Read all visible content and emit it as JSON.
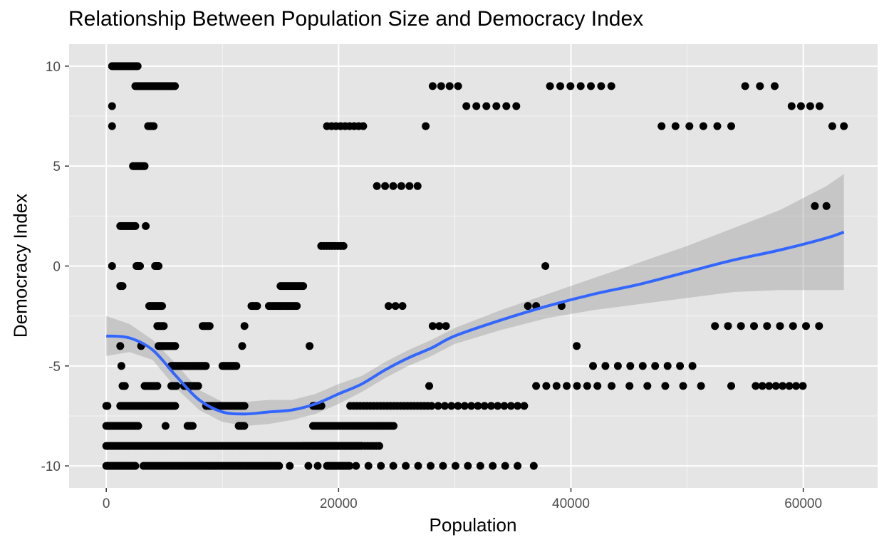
{
  "chart_data": {
    "type": "scatter",
    "title": "Relationship Between Population Size and Democracy Index",
    "xlabel": "Population",
    "ylabel": "Democracy Index",
    "xlim": [
      -3200,
      66400
    ],
    "ylim": [
      -11.1,
      11.1
    ],
    "x_ticks": [
      0,
      20000,
      40000,
      60000
    ],
    "x_tick_labels": [
      "0",
      "20000",
      "40000",
      "60000"
    ],
    "y_ticks": [
      -10,
      -5,
      0,
      5,
      10
    ],
    "y_tick_labels": [
      "-10",
      "-5",
      "0",
      "5",
      "10"
    ],
    "grid": true,
    "colors": {
      "panel": "#e5e5e5",
      "grid_major": "#ffffff",
      "points": "#000000",
      "smooth_line": "#3366ff",
      "ribbon": "#999999",
      "tick_text": "#4d4d4d"
    },
    "point_groups": [
      {
        "y": 10,
        "x_from": 500,
        "x_to": 2700,
        "step": 100
      },
      {
        "y": 9,
        "x_from": 2500,
        "x_to": 6000,
        "step": 110
      },
      {
        "y": 8,
        "x_from": 500,
        "x_to": 500,
        "step": 100
      },
      {
        "y": 7,
        "x_from": 500,
        "x_to": 500,
        "step": 100
      },
      {
        "y": 7,
        "x_from": 3600,
        "x_to": 4100,
        "step": 120
      },
      {
        "y": 5,
        "x_from": 2300,
        "x_to": 3300,
        "step": 100
      },
      {
        "y": 2,
        "x_from": 1200,
        "x_to": 2500,
        "step": 100
      },
      {
        "y": 2,
        "x_from": 3400,
        "x_to": 3400,
        "step": 100
      },
      {
        "y": 0,
        "x_from": 500,
        "x_to": 500,
        "step": 100
      },
      {
        "y": 0,
        "x_from": 2600,
        "x_to": 2900,
        "step": 100
      },
      {
        "y": 0,
        "x_from": 4200,
        "x_to": 4500,
        "step": 100
      },
      {
        "y": -1,
        "x_from": 1200,
        "x_to": 1400,
        "step": 100
      },
      {
        "y": -2,
        "x_from": 3700,
        "x_to": 4900,
        "step": 110
      },
      {
        "y": -3,
        "x_from": 4400,
        "x_to": 5000,
        "step": 110
      },
      {
        "y": -4,
        "x_from": 1200,
        "x_to": 1200,
        "step": 100
      },
      {
        "y": -4,
        "x_from": 3000,
        "x_to": 3000,
        "step": 100
      },
      {
        "y": -4,
        "x_from": 4500,
        "x_to": 6000,
        "step": 110
      },
      {
        "y": -5,
        "x_from": 1300,
        "x_to": 1300,
        "step": 100
      },
      {
        "y": -5,
        "x_from": 5600,
        "x_to": 8600,
        "step": 110
      },
      {
        "y": -6,
        "x_from": 1400,
        "x_to": 1600,
        "step": 100
      },
      {
        "y": -6,
        "x_from": 3300,
        "x_to": 4400,
        "step": 110
      },
      {
        "y": -6,
        "x_from": 5600,
        "x_to": 6100,
        "step": 110
      },
      {
        "y": -6,
        "x_from": 6700,
        "x_to": 8000,
        "step": 110
      },
      {
        "y": -7,
        "x_from": 0,
        "x_to": 100,
        "step": 100
      },
      {
        "y": -7,
        "x_from": 1200,
        "x_to": 6000,
        "step": 110
      },
      {
        "y": -8,
        "x_from": 0,
        "x_to": 2800,
        "step": 110
      },
      {
        "y": -8,
        "x_from": 5100,
        "x_to": 5100,
        "step": 100
      },
      {
        "y": -8,
        "x_from": 7000,
        "x_to": 7500,
        "step": 110
      },
      {
        "y": -9,
        "x_from": 0,
        "x_to": 22000,
        "step": 160
      },
      {
        "y": -10,
        "x_from": 0,
        "x_to": 2500,
        "step": 100
      },
      {
        "y": -10,
        "x_from": 3200,
        "x_to": 15000,
        "step": 160
      },
      {
        "y": -3,
        "x_from": 8300,
        "x_to": 8900,
        "step": 120
      },
      {
        "y": -5,
        "x_from": 10000,
        "x_to": 11200,
        "step": 120
      },
      {
        "y": -4,
        "x_from": 11700,
        "x_to": 11700,
        "step": 100
      },
      {
        "y": -3,
        "x_from": 11900,
        "x_to": 11900,
        "step": 100
      },
      {
        "y": -7,
        "x_from": 8600,
        "x_to": 12000,
        "step": 150
      },
      {
        "y": -8,
        "x_from": 11400,
        "x_to": 11900,
        "step": 120
      },
      {
        "y": -2,
        "x_from": 12500,
        "x_to": 13000,
        "step": 120
      },
      {
        "y": -2,
        "x_from": 14000,
        "x_to": 16500,
        "step": 160
      },
      {
        "y": -1,
        "x_from": 15000,
        "x_to": 17000,
        "step": 150
      },
      {
        "y": -4,
        "x_from": 17500,
        "x_to": 17500,
        "step": 100
      },
      {
        "y": -7,
        "x_from": 17800,
        "x_to": 18600,
        "step": 120
      },
      {
        "y": -8,
        "x_from": 17800,
        "x_to": 24800,
        "step": 210
      },
      {
        "y": -9,
        "x_from": 17000,
        "x_to": 23600,
        "step": 250
      },
      {
        "y": -10,
        "x_from": 15800,
        "x_to": 15800,
        "step": 100
      },
      {
        "y": -10,
        "x_from": 17400,
        "x_to": 17400,
        "step": 100
      },
      {
        "y": -10,
        "x_from": 18200,
        "x_to": 18200,
        "step": 100
      },
      {
        "y": -10,
        "x_from": 19000,
        "x_to": 21000,
        "step": 130
      },
      {
        "y": -10,
        "x_from": 21500,
        "x_to": 36000,
        "step": 1070
      },
      {
        "y": -10,
        "x_from": 36800,
        "x_to": 36800,
        "step": 100
      },
      {
        "y": 7,
        "x_from": 19000,
        "x_to": 22500,
        "step": 390
      },
      {
        "y": 1,
        "x_from": 18500,
        "x_to": 20600,
        "step": 240
      },
      {
        "y": 4,
        "x_from": 23300,
        "x_to": 26800,
        "step": 700
      },
      {
        "y": -2,
        "x_from": 24300,
        "x_to": 25500,
        "step": 600
      },
      {
        "y": 7,
        "x_from": 27500,
        "x_to": 27500,
        "step": 100
      },
      {
        "y": -6,
        "x_from": 27800,
        "x_to": 27800,
        "step": 100
      },
      {
        "y": 9,
        "x_from": 28100,
        "x_to": 30300,
        "step": 730
      },
      {
        "y": 8,
        "x_from": 31000,
        "x_to": 35300,
        "step": 860
      },
      {
        "y": -3,
        "x_from": 28100,
        "x_to": 29800,
        "step": 570
      },
      {
        "y": -7,
        "x_from": 21000,
        "x_to": 27700,
        "step": 290
      },
      {
        "y": -7,
        "x_from": 28000,
        "x_to": 36500,
        "step": 570
      },
      {
        "y": -2,
        "x_from": 36300,
        "x_to": 37000,
        "step": 700
      },
      {
        "y": 0,
        "x_from": 37800,
        "x_to": 37800,
        "step": 100
      },
      {
        "y": -2,
        "x_from": 39200,
        "x_to": 39200,
        "step": 100
      },
      {
        "y": 9,
        "x_from": 38200,
        "x_to": 43500,
        "step": 880
      },
      {
        "y": -4,
        "x_from": 40500,
        "x_to": 40500,
        "step": 100
      },
      {
        "y": -6,
        "x_from": 37000,
        "x_to": 42300,
        "step": 880
      },
      {
        "y": -5,
        "x_from": 41900,
        "x_to": 51500,
        "step": 1070
      },
      {
        "y": -6,
        "x_from": 43500,
        "x_to": 52000,
        "step": 1540
      },
      {
        "y": -6,
        "x_from": 53800,
        "x_to": 53800,
        "step": 100
      },
      {
        "y": 7,
        "x_from": 47800,
        "x_to": 53800,
        "step": 1200
      },
      {
        "y": -3,
        "x_from": 52400,
        "x_to": 61400,
        "step": 1120
      },
      {
        "y": 9,
        "x_from": 55000,
        "x_to": 58800,
        "step": 1270
      },
      {
        "y": 8,
        "x_from": 59000,
        "x_to": 61400,
        "step": 800
      },
      {
        "y": -6,
        "x_from": 55900,
        "x_to": 60000,
        "step": 580
      },
      {
        "y": 3,
        "x_from": 61000,
        "x_to": 62000,
        "step": 1000
      },
      {
        "y": 7,
        "x_from": 62500,
        "x_to": 63500,
        "step": 1000
      }
    ],
    "smooth": {
      "x": [
        0,
        2000,
        4000,
        6000,
        8000,
        10000,
        12000,
        14000,
        16000,
        18000,
        20000,
        22000,
        24000,
        26000,
        28000,
        30000,
        34000,
        38000,
        42000,
        46000,
        50000,
        54000,
        58000,
        62000,
        63500
      ],
      "y": [
        -3.5,
        -3.6,
        -4.2,
        -5.5,
        -6.7,
        -7.3,
        -7.4,
        -7.3,
        -7.2,
        -6.9,
        -6.4,
        -5.9,
        -5.2,
        -4.6,
        -4.1,
        -3.5,
        -2.7,
        -2.0,
        -1.4,
        -0.9,
        -0.3,
        0.3,
        0.8,
        1.4,
        1.7
      ],
      "lower": [
        -4.5,
        -4.3,
        -4.7,
        -6.1,
        -7.2,
        -7.8,
        -8.0,
        -7.9,
        -7.7,
        -7.4,
        -6.9,
        -6.3,
        -5.6,
        -5.0,
        -4.5,
        -3.9,
        -3.2,
        -2.6,
        -2.2,
        -1.9,
        -1.6,
        -1.3,
        -1.2,
        -1.2,
        -1.2
      ],
      "upper": [
        -2.5,
        -2.9,
        -3.7,
        -4.9,
        -6.2,
        -6.8,
        -6.8,
        -6.7,
        -6.7,
        -6.4,
        -5.9,
        -5.5,
        -4.8,
        -4.2,
        -3.7,
        -3.1,
        -2.2,
        -1.4,
        -0.6,
        0.2,
        1.0,
        1.9,
        2.8,
        4.0,
        4.6
      ]
    }
  }
}
